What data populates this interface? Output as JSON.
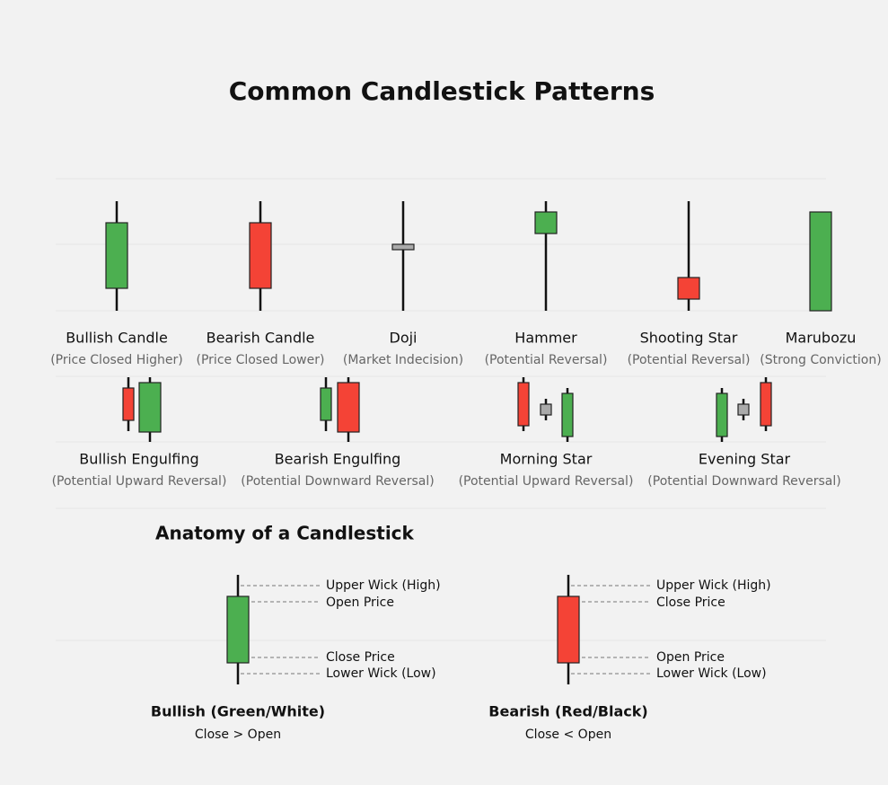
{
  "header": {
    "title": "Common Candlestick Patterns"
  },
  "patterns": [
    {
      "name": "Bullish Candle",
      "note": "(Price Closed Higher)"
    },
    {
      "name": "Bearish Candle",
      "note": "(Price Closed Lower)"
    },
    {
      "name": "Doji",
      "note": "(Market Indecision)"
    },
    {
      "name": "Hammer",
      "note": "(Potential Reversal)"
    },
    {
      "name": "Shooting Star",
      "note": "(Potential Reversal)"
    },
    {
      "name": "Marubozu",
      "note": "(Strong Conviction)"
    }
  ],
  "multi_patterns": [
    {
      "name": "Bullish Engulfing",
      "note": "(Potential Upward Reversal)"
    },
    {
      "name": "Bearish Engulfing",
      "note": "(Potential Downward Reversal)"
    },
    {
      "name": "Morning Star",
      "note": "(Potential Upward Reversal)"
    },
    {
      "name": "Evening Star",
      "note": "(Potential Downward Reversal)"
    }
  ],
  "anatomy": {
    "title": "Anatomy of a Candlestick",
    "diagrams": [
      {
        "labels": [
          "Upper Wick (High)",
          "Open Price",
          "Close Price",
          "Lower Wick (Low)"
        ],
        "caption": "Bullish (Green/White)",
        "rule": "Close > Open"
      },
      {
        "labels": [
          "Upper Wick (High)",
          "Close Price",
          "Open Price",
          "Lower Wick (Low)"
        ],
        "caption": "Bearish (Red/Black)",
        "rule": "Close < Open"
      }
    ]
  }
}
